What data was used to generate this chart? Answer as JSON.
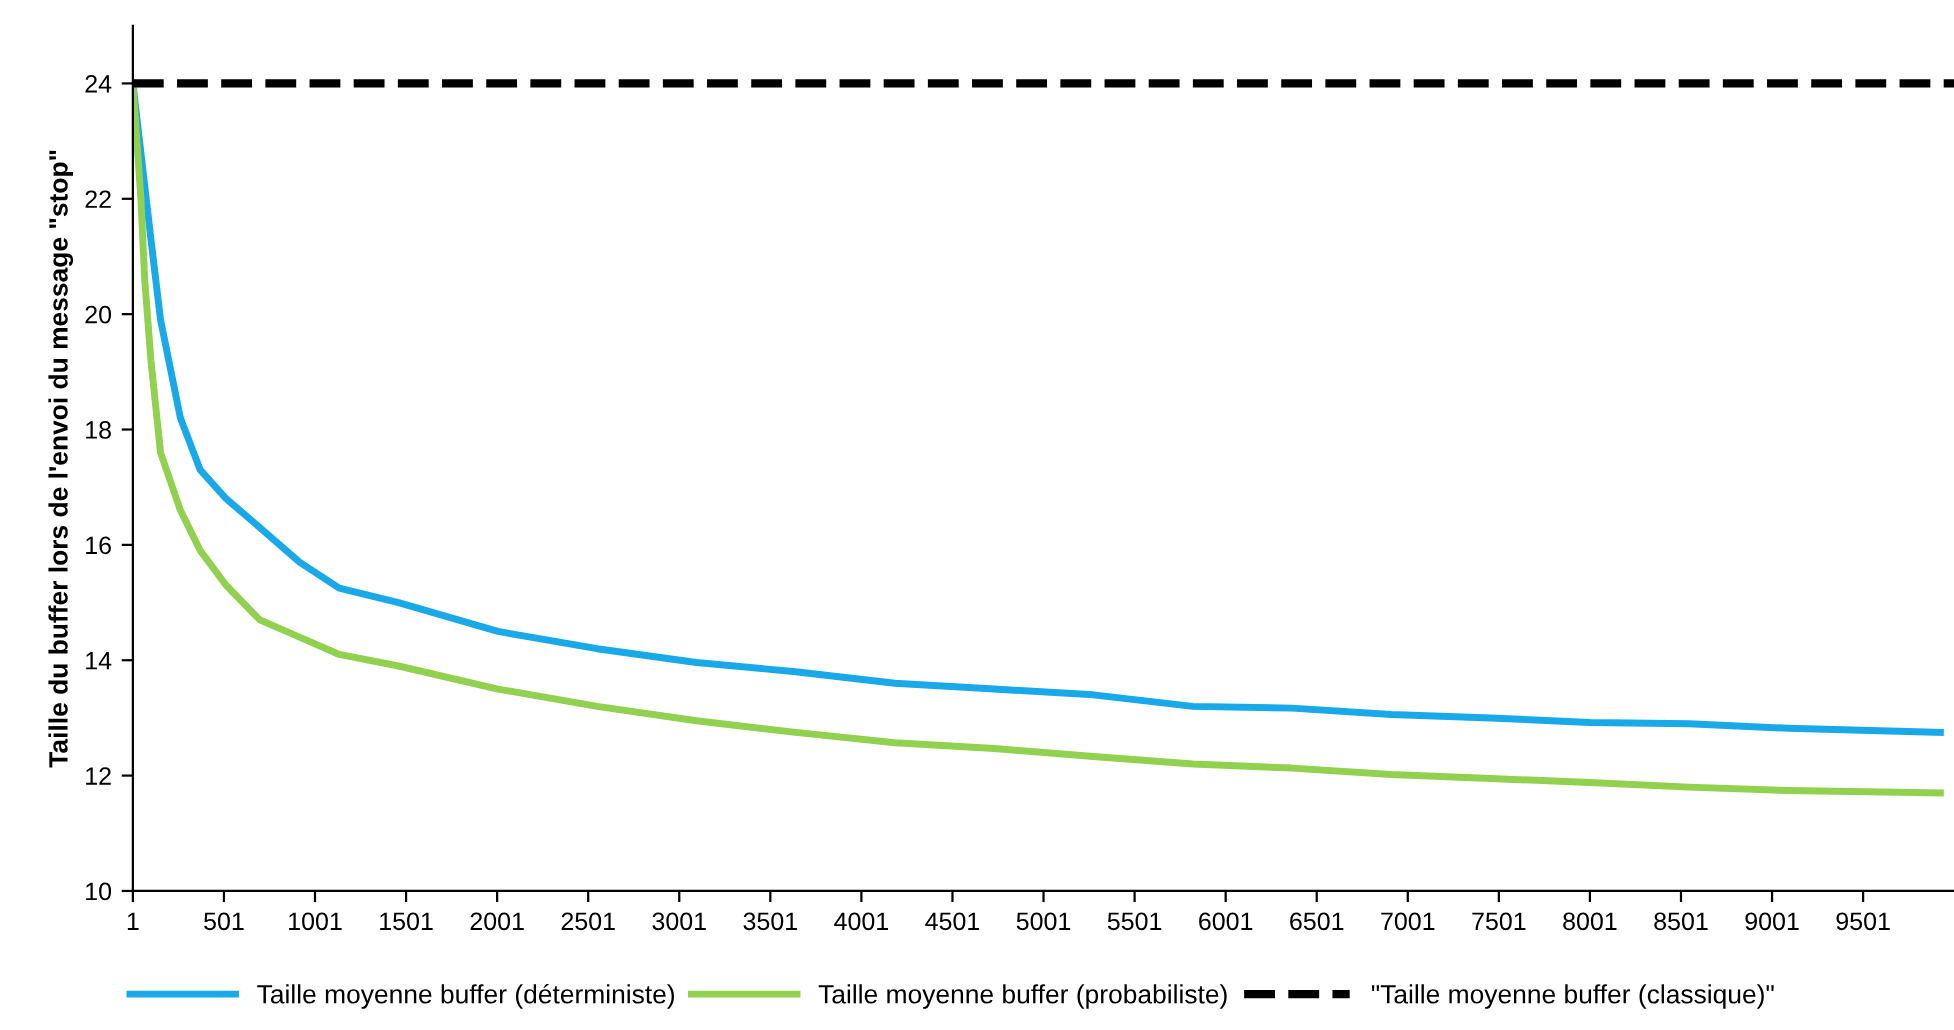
{
  "chart_data": {
    "type": "line",
    "ylabel": "Taille du buffer lors de l'envoi du message \"stop\"",
    "xlim": [
      1,
      10000
    ],
    "xticks": [
      1,
      501,
      1001,
      1501,
      2001,
      2501,
      3001,
      3501,
      4001,
      4501,
      5001,
      5501,
      6001,
      6501,
      7001,
      7501,
      8001,
      8501,
      9001,
      9501
    ],
    "ylim": [
      10,
      25
    ],
    "yticks": [
      10,
      12,
      14,
      16,
      18,
      20,
      22,
      24
    ],
    "grid": false,
    "legend": "bottom",
    "series": [
      {
        "name": "Taille moyenne buffer (déterministe)",
        "color": "#1aa9e8",
        "line_style": "solid",
        "x": [
          1,
          100,
          153,
          262,
          371,
          513,
          698,
          916,
          1134,
          1460,
          2005,
          2550,
          3095,
          3640,
          4185,
          4730,
          5275,
          5820,
          6365,
          6910,
          7456,
          8000,
          8545,
          9090,
          9925
        ],
        "values": [
          24,
          21.3,
          19.9,
          18.2,
          17.3,
          16.8,
          16.3,
          15.7,
          15.25,
          15.0,
          14.5,
          14.2,
          13.96,
          13.8,
          13.6,
          13.5,
          13.4,
          13.2,
          13.17,
          13.06,
          13.0,
          12.92,
          12.9,
          12.82,
          12.75
        ]
      },
      {
        "name": "Taille moyenne buffer (probabiliste)",
        "color": "#92d050",
        "line_style": "solid",
        "x": [
          1,
          45,
          66,
          100,
          153,
          262,
          371,
          513,
          698,
          916,
          1134,
          1460,
          2005,
          2550,
          3095,
          3640,
          4185,
          4730,
          5275,
          5820,
          6365,
          6910,
          7456,
          8000,
          8545,
          9090,
          9925
        ],
        "values": [
          24,
          22.0,
          20.6,
          19.2,
          17.6,
          16.6,
          15.9,
          15.3,
          14.7,
          14.4,
          14.1,
          13.9,
          13.5,
          13.2,
          12.95,
          12.75,
          12.57,
          12.47,
          12.33,
          12.2,
          12.13,
          12.02,
          11.95,
          11.88,
          11.8,
          11.74,
          11.7
        ]
      },
      {
        "name": "\"Taille moyenne buffer (classique)\"",
        "color": "#000000",
        "line_style": "dashed",
        "x": [
          1,
          10000
        ],
        "values": [
          24,
          24
        ]
      }
    ]
  }
}
